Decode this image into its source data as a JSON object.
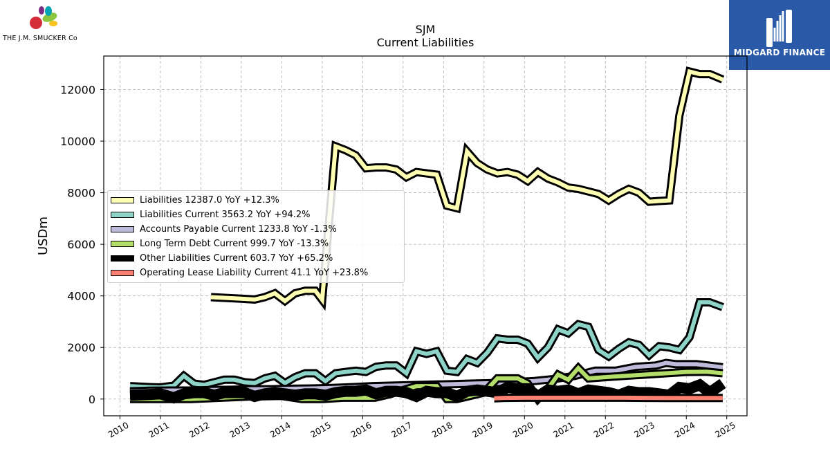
{
  "header": {
    "left_logo_text": "THE J.M. SMUCKER Co",
    "right_logo_text": "MIDGARD FINANCE"
  },
  "chart_data": {
    "type": "line",
    "title": "SJM",
    "subtitle": "Current  Liabilities",
    "xlabel": "",
    "ylabel": "USDm",
    "xlim": [
      2009.6,
      2025.5
    ],
    "ylim": [
      -650,
      13300
    ],
    "x_ticks": [
      "2010",
      "2011",
      "2012",
      "2013",
      "2014",
      "2015",
      "2016",
      "2017",
      "2018",
      "2019",
      "2020",
      "2021",
      "2022",
      "2023",
      "2024",
      "2025"
    ],
    "y_ticks": [
      "0",
      "2000",
      "4000",
      "6000",
      "8000",
      "10000",
      "12000"
    ],
    "grid": true,
    "legend_position": "center-left",
    "series": [
      {
        "name": "Liabilities  12387.0 YoY +12.3%",
        "color": "#ffffb3",
        "width": 9,
        "x": [
          2012.25,
          2012.5,
          2012.75,
          2013.0,
          2013.33,
          2013.58,
          2013.83,
          2014.08,
          2014.33,
          2014.58,
          2014.83,
          2015.0,
          2015.33,
          2015.58,
          2015.83,
          2016.08,
          2016.33,
          2016.58,
          2016.83,
          2017.08,
          2017.33,
          2017.58,
          2017.83,
          2018.08,
          2018.33,
          2018.58,
          2018.83,
          2019.08,
          2019.33,
          2019.58,
          2019.83,
          2020.08,
          2020.33,
          2020.58,
          2020.83,
          2021.08,
          2021.33,
          2021.58,
          2021.83,
          2022.08,
          2022.33,
          2022.58,
          2022.83,
          2023.08,
          2023.33,
          2023.58,
          2023.83,
          2024.08,
          2024.33,
          2024.58,
          2024.9
        ],
        "values": [
          3950,
          3930,
          3910,
          3890,
          3860,
          3950,
          4100,
          3800,
          4100,
          4200,
          4200,
          3850,
          9800,
          9650,
          9450,
          8950,
          8980,
          8980,
          8900,
          8600,
          8800,
          8750,
          8700,
          7500,
          7400,
          9600,
          9150,
          8900,
          8750,
          8800,
          8700,
          8450,
          8800,
          8550,
          8400,
          8200,
          8150,
          8050,
          7950,
          7700,
          7950,
          8150,
          8000,
          7650,
          7680,
          7700,
          11000,
          12700,
          12600,
          12600,
          12387
        ]
      },
      {
        "name": "Liabilities Current  3563.2 YoY +94.2%",
        "color": "#8dd3c7",
        "width": 9,
        "x": [
          2010.25,
          2010.5,
          2010.75,
          2011.0,
          2011.33,
          2011.58,
          2011.83,
          2012.08,
          2012.33,
          2012.58,
          2012.83,
          2013.08,
          2013.33,
          2013.58,
          2013.83,
          2014.08,
          2014.33,
          2014.58,
          2014.83,
          2015.08,
          2015.33,
          2015.58,
          2015.83,
          2016.08,
          2016.33,
          2016.58,
          2016.83,
          2017.08,
          2017.33,
          2017.58,
          2017.83,
          2018.08,
          2018.33,
          2018.58,
          2018.83,
          2019.08,
          2019.33,
          2019.58,
          2019.83,
          2020.08,
          2020.33,
          2020.58,
          2020.83,
          2021.08,
          2021.33,
          2021.58,
          2021.83,
          2022.08,
          2022.33,
          2022.58,
          2022.83,
          2023.08,
          2023.33,
          2023.58,
          2023.83,
          2024.08,
          2024.33,
          2024.58,
          2024.9
        ],
        "values": [
          500,
          480,
          460,
          450,
          520,
          900,
          600,
          550,
          650,
          750,
          750,
          650,
          620,
          800,
          900,
          620,
          850,
          1000,
          1000,
          700,
          1000,
          1050,
          1100,
          1050,
          1250,
          1300,
          1300,
          1000,
          1850,
          1750,
          1850,
          1100,
          1050,
          1550,
          1400,
          1800,
          2350,
          2300,
          2300,
          2150,
          1600,
          2000,
          2700,
          2550,
          2900,
          2800,
          1900,
          1650,
          1950,
          2200,
          2100,
          1700,
          2050,
          2000,
          1900,
          2400,
          3750,
          3750,
          3563.2
        ]
      },
      {
        "name": "Accounts Payable Current  1233.8 YoY -1.3%",
        "color": "#bebada",
        "width": 9,
        "x": [
          2010.25,
          2010.75,
          2011.25,
          2011.75,
          2012.25,
          2012.75,
          2013.25,
          2013.75,
          2014.25,
          2014.75,
          2015.25,
          2015.75,
          2016.25,
          2016.75,
          2017.25,
          2017.75,
          2018.25,
          2018.75,
          2019.25,
          2019.75,
          2020.25,
          2020.75,
          2021.25,
          2021.75,
          2022.25,
          2022.75,
          2023.25,
          2023.5,
          2023.75,
          2024.25,
          2024.9
        ],
        "values": [
          300,
          320,
          330,
          330,
          350,
          360,
          380,
          380,
          400,
          410,
          430,
          460,
          500,
          520,
          540,
          560,
          580,
          600,
          620,
          650,
          700,
          780,
          900,
          1100,
          1100,
          1250,
          1300,
          1400,
          1350,
          1350,
          1233.8
        ]
      },
      {
        "name": "Long Term Debt Current  999.7 YoY -13.3%",
        "color": "#b3de69",
        "width": 9,
        "x": [
          2010.25,
          2011.0,
          2011.75,
          2012.5,
          2013.25,
          2014.0,
          2014.5,
          2015.0,
          2015.5,
          2016.0,
          2016.3,
          2016.7,
          2017.0,
          2017.33,
          2017.6,
          2017.83,
          2018.08,
          2018.33,
          2018.6,
          2019.0,
          2019.33,
          2019.6,
          2019.83,
          2020.08,
          2020.33,
          2020.58,
          2020.83,
          2021.08,
          2021.33,
          2021.58,
          2022.0,
          2022.5,
          2023.0,
          2023.5,
          2024.0,
          2024.5,
          2024.9
        ],
        "values": [
          0,
          0,
          0,
          50,
          100,
          120,
          0,
          0,
          50,
          50,
          50,
          200,
          350,
          500,
          500,
          500,
          0,
          0,
          100,
          250,
          800,
          800,
          800,
          600,
          0,
          400,
          950,
          750,
          1200,
          800,
          850,
          900,
          950,
          1000,
          1050,
          1060,
          999.7
        ]
      },
      {
        "name": "Other Liabilities Current  603.7 YoY +65.2%",
        "color": "#000000",
        "width": 13,
        "x": [
          2010.25,
          2010.75,
          2011.0,
          2011.33,
          2011.58,
          2011.83,
          2012.08,
          2012.33,
          2012.58,
          2012.83,
          2013.08,
          2013.33,
          2013.58,
          2013.83,
          2014.08,
          2014.33,
          2014.58,
          2014.83,
          2015.08,
          2015.33,
          2015.58,
          2015.83,
          2016.08,
          2016.33,
          2016.58,
          2016.83,
          2017.08,
          2017.33,
          2017.58,
          2017.83,
          2018.08,
          2018.33,
          2018.58,
          2018.83,
          2019.08,
          2019.33,
          2019.58,
          2019.83,
          2020.08,
          2020.33,
          2020.58,
          2020.83,
          2021.08,
          2021.33,
          2021.58,
          2021.83,
          2022.08,
          2022.33,
          2022.58,
          2022.83,
          2023.08,
          2023.33,
          2023.58,
          2023.83,
          2024.08,
          2024.33,
          2024.58,
          2024.9
        ],
        "values": [
          150,
          180,
          200,
          50,
          200,
          250,
          250,
          150,
          250,
          250,
          250,
          100,
          200,
          250,
          200,
          150,
          200,
          200,
          150,
          250,
          300,
          300,
          350,
          200,
          300,
          300,
          250,
          100,
          300,
          250,
          250,
          100,
          300,
          350,
          300,
          250,
          450,
          400,
          400,
          100,
          350,
          300,
          350,
          200,
          350,
          300,
          250,
          150,
          300,
          250,
          250,
          200,
          150,
          450,
          400,
          550,
          250,
          603.7
        ]
      },
      {
        "name": "Operating Lease Liability Current  41.1 YoY +23.8%",
        "color": "#fb8072",
        "width": 9,
        "x": [
          2019.25,
          2019.5,
          2020.0,
          2020.5,
          2021.0,
          2021.5,
          2022.0,
          2022.5,
          2023.0,
          2023.5,
          2024.0,
          2024.5,
          2024.9
        ],
        "values": [
          30,
          45,
          50,
          50,
          50,
          50,
          50,
          50,
          45,
          40,
          40,
          40,
          41.1
        ]
      }
    ]
  }
}
